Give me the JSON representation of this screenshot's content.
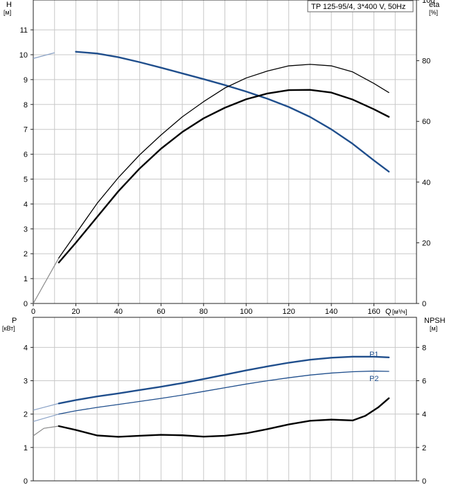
{
  "chart_data": [
    {
      "type": "line",
      "panel": "top",
      "title": "TP 125-95/4, 3*400 V, 50Hz",
      "x_axis": {
        "label": "Q",
        "unit": "[м³/ч]",
        "range": [
          0,
          180
        ],
        "ticks": [
          0,
          20,
          40,
          60,
          80,
          100,
          120,
          140,
          160
        ]
      },
      "y_left": {
        "label": "H",
        "unit": "[м]",
        "range": [
          0,
          12.2
        ],
        "ticks": [
          0,
          1,
          2,
          3,
          4,
          5,
          6,
          7,
          8,
          9,
          10,
          11
        ]
      },
      "y_right": {
        "label": "eta",
        "unit": "[%]",
        "range": [
          0,
          100
        ],
        "ticks": [
          0,
          20,
          40,
          60,
          80,
          100
        ]
      },
      "grid": true,
      "series": [
        {
          "id": "H",
          "axis": "left",
          "color": "#1f4e8c",
          "x": [
            0,
            10,
            20,
            30,
            40,
            50,
            60,
            70,
            80,
            90,
            100,
            110,
            120,
            130,
            140,
            150,
            160,
            167
          ],
          "y": [
            9.85,
            10.08,
            10.12,
            10.05,
            9.9,
            9.7,
            9.48,
            9.25,
            9.02,
            8.78,
            8.52,
            8.23,
            7.9,
            7.5,
            7.0,
            6.42,
            5.75,
            5.3
          ]
        },
        {
          "id": "eta-thin",
          "axis": "right",
          "color": "#000000",
          "x": [
            0,
            12,
            20,
            30,
            40,
            50,
            60,
            70,
            80,
            90,
            100,
            110,
            120,
            130,
            140,
            150,
            160,
            167
          ],
          "y": [
            0,
            15,
            23,
            33,
            41.5,
            49,
            55.5,
            61.5,
            66.5,
            71,
            74.3,
            76.6,
            78.3,
            78.8,
            78.3,
            76.3,
            72.5,
            69.5
          ]
        },
        {
          "id": "eta-thick",
          "axis": "right",
          "color": "#000000",
          "x": [
            12,
            20,
            30,
            40,
            50,
            60,
            70,
            80,
            90,
            100,
            110,
            120,
            130,
            140,
            150,
            160,
            167
          ],
          "y": [
            13.5,
            20,
            28.5,
            37,
            44.5,
            51,
            56.5,
            61,
            64.5,
            67.3,
            69.2,
            70.3,
            70.4,
            69.5,
            67.2,
            64,
            61.5
          ]
        }
      ]
    },
    {
      "type": "line",
      "panel": "bottom",
      "x_axis": {
        "range": [
          0,
          180
        ]
      },
      "y_left": {
        "label": "P",
        "unit": "[кВт]",
        "range": [
          0,
          4.9
        ],
        "ticks": [
          0,
          1,
          2,
          3,
          4
        ]
      },
      "y_right": {
        "label": "NPSH",
        "unit": "[м]",
        "range": [
          0,
          9.8
        ],
        "ticks": [
          0,
          2,
          4,
          6,
          8
        ]
      },
      "grid": true,
      "series": [
        {
          "id": "P1",
          "name": "P1",
          "axis": "left",
          "color": "#1f4e8c",
          "x": [
            0,
            12,
            20,
            30,
            40,
            50,
            60,
            70,
            80,
            90,
            100,
            110,
            120,
            130,
            140,
            150,
            160,
            167
          ],
          "y": [
            2.12,
            2.32,
            2.42,
            2.53,
            2.62,
            2.72,
            2.82,
            2.93,
            3.05,
            3.18,
            3.31,
            3.43,
            3.54,
            3.63,
            3.69,
            3.72,
            3.72,
            3.7
          ]
        },
        {
          "id": "P2",
          "name": "P2",
          "axis": "left",
          "color": "#1f4e8c",
          "x": [
            0,
            12,
            20,
            30,
            40,
            50,
            60,
            70,
            80,
            90,
            100,
            110,
            120,
            130,
            140,
            150,
            160,
            167
          ],
          "y": [
            1.78,
            2.0,
            2.1,
            2.2,
            2.29,
            2.38,
            2.47,
            2.57,
            2.68,
            2.79,
            2.9,
            3.0,
            3.09,
            3.17,
            3.23,
            3.27,
            3.29,
            3.28
          ]
        },
        {
          "id": "NPSH",
          "axis": "right",
          "color": "#000000",
          "x": [
            0,
            5,
            12,
            20,
            30,
            40,
            50,
            60,
            70,
            80,
            90,
            100,
            110,
            120,
            130,
            140,
            150,
            156,
            162,
            167
          ],
          "y": [
            2.7,
            3.15,
            3.28,
            3.05,
            2.72,
            2.64,
            2.7,
            2.76,
            2.73,
            2.65,
            2.7,
            2.85,
            3.1,
            3.38,
            3.6,
            3.67,
            3.62,
            3.9,
            4.4,
            4.95
          ]
        }
      ]
    }
  ]
}
